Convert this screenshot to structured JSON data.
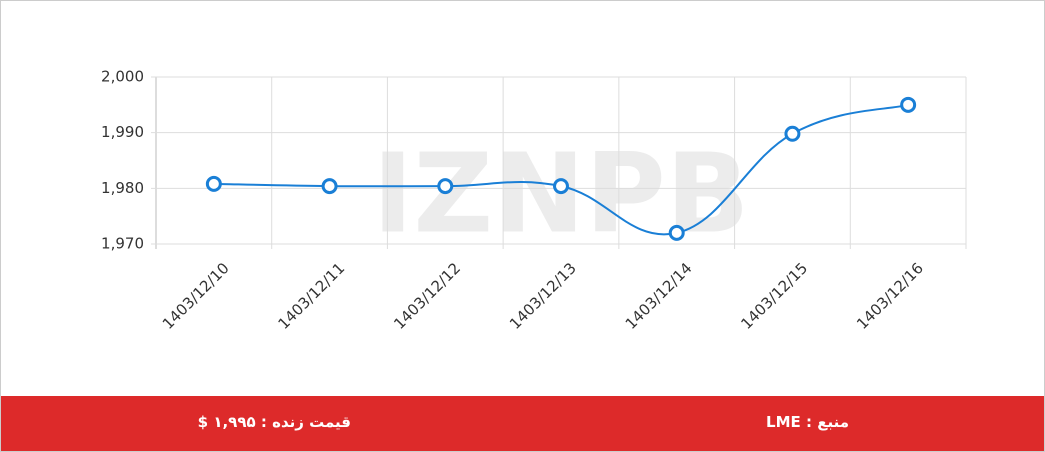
{
  "chart_data": {
    "type": "line",
    "categories": [
      "1403/12/10",
      "1403/12/11",
      "1403/12/12",
      "1403/12/13",
      "1403/12/14",
      "1403/12/15",
      "1403/12/16"
    ],
    "series": [
      {
        "color": "#1a7fd6",
        "values": [
          1980.8,
          1980.4,
          1980.4,
          1980.4,
          1972,
          1989.8,
          1995
        ]
      }
    ],
    "ylim": [
      1970,
      2000
    ],
    "yticks": [
      {
        "value": 1970,
        "label": "1,970"
      },
      {
        "value": 1980,
        "label": "1,980"
      },
      {
        "value": 1990,
        "label": "1,990"
      },
      {
        "value": 2000,
        "label": "2,000"
      }
    ],
    "grid": true,
    "watermark": "IZNPB"
  },
  "footer": {
    "price": "قیمت زنده : ۱,۹۹۵ $",
    "source": "منبع : LME"
  }
}
